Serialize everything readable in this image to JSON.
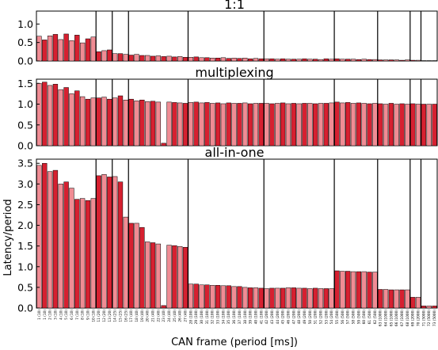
{
  "figure": {
    "xlabel": "CAN frame (period [ms])",
    "ylabel": "Latency/period"
  },
  "chart_data": [
    {
      "type": "bar",
      "title": "1:1",
      "xlabel": "",
      "ylabel": "",
      "ylim": [
        0,
        1.35
      ],
      "yticks": [
        0.0,
        0.5,
        1.0
      ],
      "grid": false,
      "colors": {
        "dark": "#d62030",
        "light": "#f08c94",
        "edge": "#000000"
      },
      "series": [
        {
          "name": "",
          "values": [
            0.67,
            0.57,
            0.68,
            0.72,
            0.58,
            0.73,
            0.55,
            0.7,
            0.49,
            0.6,
            0.65,
            0.25,
            0.28,
            0.3,
            0.2,
            0.2,
            0.18,
            0.16,
            0.18,
            0.15,
            0.15,
            0.13,
            0.14,
            0.12,
            0.13,
            0.11,
            0.12,
            0.1,
            0.1,
            0.11,
            0.09,
            0.09,
            0.08,
            0.08,
            0.09,
            0.07,
            0.08,
            0.07,
            0.08,
            0.06,
            0.07,
            0.06,
            0.06,
            0.06,
            0.05,
            0.06,
            0.05,
            0.05,
            0.05,
            0.06,
            0.05,
            0.05,
            0.04,
            0.06,
            0.05,
            0.06,
            0.05,
            0.05,
            0.05,
            0.04,
            0.05,
            0.04,
            0.04,
            0.03,
            0.03,
            0.03,
            0.03,
            0.02,
            0.03,
            0.02,
            0.02,
            0.01,
            0.01,
            0.01
          ]
        }
      ],
      "group_sizes": [
        11,
        3,
        3,
        11,
        14,
        13,
        8,
        6,
        2,
        3
      ]
    },
    {
      "type": "bar",
      "title": "multiplexing",
      "xlabel": "",
      "ylabel": "",
      "ylim": [
        0,
        1.6
      ],
      "yticks": [
        0.0,
        0.5,
        1.0,
        1.5
      ],
      "grid": false,
      "colors": {
        "dark": "#d62030",
        "light": "#f08c94",
        "edge": "#000000"
      },
      "series": [
        {
          "name": "",
          "values": [
            1.5,
            1.53,
            1.45,
            1.48,
            1.35,
            1.4,
            1.25,
            1.32,
            1.18,
            1.12,
            1.15,
            1.15,
            1.17,
            1.12,
            1.15,
            1.2,
            1.1,
            1.12,
            1.08,
            1.1,
            1.06,
            1.07,
            1.05,
            0.06,
            1.05,
            1.04,
            1.03,
            1.02,
            1.04,
            1.05,
            1.03,
            1.04,
            1.02,
            1.03,
            1.01,
            1.03,
            1.02,
            1.02,
            1.03,
            1.01,
            1.02,
            1.02,
            1.02,
            1.01,
            1.02,
            1.03,
            1.01,
            1.02,
            1.01,
            1.02,
            1.02,
            1.01,
            1.02,
            1.02,
            1.03,
            1.05,
            1.03,
            1.04,
            1.02,
            1.03,
            1.02,
            1.01,
            1.02,
            1.01,
            1.0,
            1.02,
            1.0,
            1.01,
            1.0,
            1.01,
            1.0,
            1.0,
            1.0,
            1.0
          ]
        }
      ],
      "group_sizes": [
        11,
        3,
        3,
        11,
        14,
        13,
        8,
        6,
        2,
        3
      ]
    },
    {
      "type": "bar",
      "title": "all-in-one",
      "xlabel": "",
      "ylabel": "Latency/period",
      "ylim": [
        0,
        3.6
      ],
      "yticks": [
        0.0,
        0.5,
        1.0,
        1.5,
        2.0,
        2.5,
        3.0,
        3.5
      ],
      "grid": false,
      "colors": {
        "dark": "#d62030",
        "light": "#f08c94",
        "edge": "#000000"
      },
      "series": [
        {
          "name": "",
          "values": [
            3.45,
            3.5,
            3.3,
            3.33,
            3.0,
            3.05,
            2.9,
            2.63,
            2.65,
            2.6,
            2.65,
            3.2,
            3.23,
            3.17,
            3.18,
            3.05,
            2.2,
            2.05,
            2.05,
            1.95,
            1.6,
            1.58,
            1.55,
            0.06,
            1.52,
            1.51,
            1.49,
            1.47,
            0.58,
            0.58,
            0.56,
            0.56,
            0.55,
            0.55,
            0.54,
            0.54,
            0.52,
            0.52,
            0.5,
            0.49,
            0.49,
            0.48,
            0.47,
            0.48,
            0.48,
            0.48,
            0.49,
            0.49,
            0.48,
            0.48,
            0.47,
            0.48,
            0.47,
            0.47,
            0.47,
            0.9,
            0.89,
            0.89,
            0.88,
            0.88,
            0.88,
            0.87,
            0.87,
            0.45,
            0.45,
            0.44,
            0.44,
            0.44,
            0.44,
            0.26,
            0.26,
            0.05,
            0.05,
            0.05
          ]
        }
      ],
      "group_sizes": [
        11,
        3,
        3,
        11,
        14,
        13,
        8,
        6,
        2,
        3
      ]
    }
  ],
  "x_tick_labels": [
    "1 (10)",
    "1 (10)",
    "2 (10)",
    "3 (10)",
    "4 (10)",
    "5 (10)",
    "6 (10)",
    "7 (10)",
    "8 (10)",
    "9 (10)",
    "10 (10)",
    "11 (20)",
    "12 (20)",
    "13 (20)",
    "14 (25)",
    "15 (25)",
    "16 (25)",
    "17 (40)",
    "18 (40)",
    "19 (40)",
    "20 (40)",
    "21 (40)",
    "22 (40)",
    "23 (40)",
    "24 (40)",
    "25 (40)",
    "26 (40)",
    "27 (40)",
    "28 (100)",
    "29 (100)",
    "30 (100)",
    "31 (100)",
    "32 (100)",
    "33 (100)",
    "34 (100)",
    "35 (100)",
    "36 (100)",
    "37 (100)",
    "38 (100)",
    "39 (100)",
    "40 (100)",
    "41 (100)",
    "42 (200)",
    "43 (200)",
    "44 (200)",
    "45 (200)",
    "46 (200)",
    "47 (200)",
    "48 (200)",
    "49 (200)",
    "50 (200)",
    "51 (200)",
    "52 (200)",
    "53 (200)",
    "54 (200)",
    "55 (500)",
    "56 (500)",
    "57 (500)",
    "58 (500)",
    "59 (500)",
    "60 (500)",
    "61 (500)",
    "62 (500)",
    "63 (1000)",
    "64 (1000)",
    "65 (1000)",
    "66 (1000)",
    "67 (1000)",
    "68 (1000)",
    "69 (2000)",
    "70 (2000)",
    "71 (5000)",
    "72 (5000)",
    "73 (5000)"
  ]
}
